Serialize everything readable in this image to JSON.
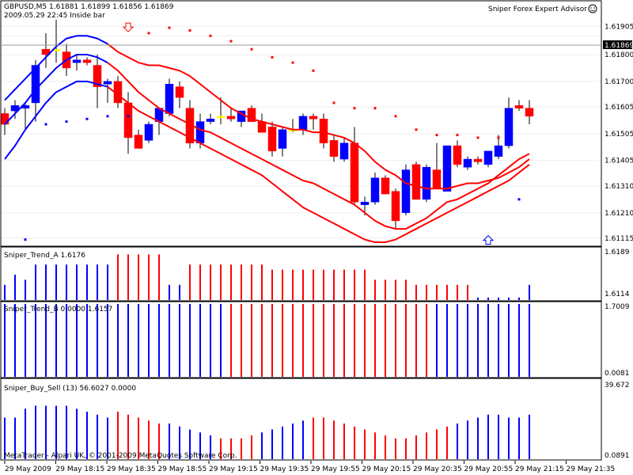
{
  "window": {
    "symbol_line": "GBPUSD,M5  1.61881 1.61899 1.61856 1.61869",
    "info_line": "2009.05.29 22:45 Inside bar",
    "advisor": "Sniper Forex Expert Advisor",
    "copyright": "MetaTrader - Alpari UK, © 2001-2009 MetaQuotes Software Corp."
  },
  "colors": {
    "bull": "#0000ff",
    "bear": "#ff0000",
    "doji": "#ffff00",
    "grid": "#d0d0d0"
  },
  "chart_data": [
    {
      "type": "candlestick",
      "title": "GBPUSD,M5",
      "price_ticks": [
        "1.61905",
        "1.61869",
        "1.61800",
        "1.61700",
        "1.61605",
        "1.61505",
        "1.61405",
        "1.61310",
        "1.61210",
        "1.61115"
      ],
      "current_price": 1.61869,
      "ylim": [
        1.611,
        1.6198
      ],
      "candles": [
        [
          1.6158,
          1.616,
          1.615,
          1.6154
        ],
        [
          1.6159,
          1.6163,
          1.6156,
          1.6161
        ],
        [
          1.616,
          1.6162,
          1.6152,
          1.6161
        ],
        [
          1.6162,
          1.6178,
          1.6155,
          1.6176
        ],
        [
          1.6182,
          1.6188,
          1.6175,
          1.618
        ],
        [
          1.6182,
          1.6193,
          1.6177,
          1.6182
        ],
        [
          1.6181,
          1.6184,
          1.6172,
          1.6175
        ],
        [
          1.6177,
          1.618,
          1.6174,
          1.6178
        ],
        [
          1.6178,
          1.6179,
          1.6176,
          1.6177
        ],
        [
          1.6176,
          1.618,
          1.616,
          1.6168
        ],
        [
          1.6169,
          1.6171,
          1.6162,
          1.617
        ],
        [
          1.617,
          1.6172,
          1.616,
          1.6162
        ],
        [
          1.6162,
          1.6166,
          1.6143,
          1.6149
        ],
        [
          1.615,
          1.6152,
          1.6145,
          1.6145
        ],
        [
          1.6148,
          1.6155,
          1.6147,
          1.6154
        ],
        [
          1.6155,
          1.616,
          1.615,
          1.616
        ],
        [
          1.6158,
          1.6171,
          1.6157,
          1.6169
        ],
        [
          1.6168,
          1.617,
          1.616,
          1.6164
        ],
        [
          1.616,
          1.6163,
          1.6145,
          1.6147
        ],
        [
          1.6147,
          1.6158,
          1.6145,
          1.6155
        ],
        [
          1.6155,
          1.6158,
          1.6154,
          1.6156
        ],
        [
          1.6157,
          1.6164,
          1.6154,
          1.6157
        ],
        [
          1.6157,
          1.616,
          1.6155,
          1.6156
        ],
        [
          1.6155,
          1.6159,
          1.6153,
          1.6159
        ],
        [
          1.616,
          1.6161,
          1.6155,
          1.6155
        ],
        [
          1.6155,
          1.6158,
          1.6151,
          1.6151
        ],
        [
          1.6153,
          1.6155,
          1.6142,
          1.6144
        ],
        [
          1.6145,
          1.6153,
          1.6142,
          1.6152
        ],
        [
          1.6152,
          1.6156,
          1.6151,
          1.6152
        ],
        [
          1.6152,
          1.6158,
          1.615,
          1.6157
        ],
        [
          1.6157,
          1.6158,
          1.6152,
          1.6156
        ],
        [
          1.6156,
          1.6158,
          1.6145,
          1.6147
        ],
        [
          1.6148,
          1.615,
          1.614,
          1.6142
        ],
        [
          1.6141,
          1.6149,
          1.614,
          1.6147
        ],
        [
          1.6147,
          1.6153,
          1.6124,
          1.6125
        ],
        [
          1.6124,
          1.6127,
          1.612,
          1.6125
        ],
        [
          1.6125,
          1.6136,
          1.6124,
          1.6134
        ],
        [
          1.6134,
          1.6135,
          1.6128,
          1.6128
        ],
        [
          1.6129,
          1.613,
          1.6115,
          1.6118
        ],
        [
          1.6121,
          1.6139,
          1.612,
          1.6137
        ],
        [
          1.6139,
          1.614,
          1.6126,
          1.6126
        ],
        [
          1.6126,
          1.6139,
          1.6125,
          1.6138
        ],
        [
          1.6137,
          1.6147,
          1.613,
          1.613
        ],
        [
          1.6129,
          1.6146,
          1.6129,
          1.6146
        ],
        [
          1.6146,
          1.6148,
          1.6138,
          1.6139
        ],
        [
          1.6138,
          1.6142,
          1.6137,
          1.6141
        ],
        [
          1.6141,
          1.6142,
          1.6139,
          1.614
        ],
        [
          1.6139,
          1.6144,
          1.6138,
          1.6144
        ],
        [
          1.6142,
          1.615,
          1.6141,
          1.6146
        ],
        [
          1.6146,
          1.6164,
          1.6145,
          1.616
        ],
        [
          1.6161,
          1.6163,
          1.6159,
          1.616
        ],
        [
          1.616,
          1.6163,
          1.6154,
          1.6157
        ]
      ],
      "upper_band": [
        1.6163,
        1.6167,
        1.6171,
        1.6175,
        1.6179,
        1.6183,
        1.6186,
        1.6187,
        1.6187,
        1.6186,
        1.6184,
        1.6181,
        1.6179,
        1.6177,
        1.6176,
        1.6176,
        1.6175,
        1.6174,
        1.6172,
        1.6169,
        1.6166,
        1.6163,
        1.616,
        1.6158,
        1.6156,
        1.6155,
        1.6154,
        1.6153,
        1.6152,
        1.6152,
        1.6151,
        1.6151,
        1.615,
        1.6149,
        1.6147,
        1.6144,
        1.614,
        1.6137,
        1.6135,
        1.6132,
        1.6131,
        1.613,
        1.613,
        1.613,
        1.6131,
        1.6132,
        1.6132,
        1.6133,
        1.6134,
        1.6136,
        1.6138,
        1.6141
      ],
      "middle_band": [
        1.6154,
        1.6158,
        1.6162,
        1.6167,
        1.6171,
        1.6175,
        1.6178,
        1.618,
        1.618,
        1.6179,
        1.6177,
        1.6174,
        1.617,
        1.6166,
        1.6163,
        1.616,
        1.6158,
        1.6156,
        1.6154,
        1.6152,
        1.6151,
        1.6149,
        1.6147,
        1.6145,
        1.6143,
        1.6141,
        1.6139,
        1.6137,
        1.6135,
        1.6133,
        1.6132,
        1.613,
        1.6128,
        1.6126,
        1.6124,
        1.6121,
        1.6118,
        1.6116,
        1.6115,
        1.6115,
        1.6117,
        1.6119,
        1.6122,
        1.6125,
        1.6126,
        1.6128,
        1.613,
        1.6132,
        1.6135,
        1.6138,
        1.6141,
        1.6143
      ],
      "lower_band": [
        1.6141,
        1.6146,
        1.6152,
        1.6157,
        1.6162,
        1.6166,
        1.6168,
        1.617,
        1.617,
        1.6169,
        1.6168,
        1.6165,
        1.6162,
        1.6159,
        1.6157,
        1.6155,
        1.6153,
        1.6151,
        1.6149,
        1.6147,
        1.6145,
        1.6143,
        1.6141,
        1.6139,
        1.6137,
        1.6135,
        1.6132,
        1.6129,
        1.6126,
        1.6123,
        1.6121,
        1.6119,
        1.6117,
        1.6115,
        1.6113,
        1.6111,
        1.611,
        1.611,
        1.6111,
        1.6113,
        1.6115,
        1.6117,
        1.6119,
        1.6121,
        1.6123,
        1.6125,
        1.6127,
        1.6129,
        1.6131,
        1.6133,
        1.6136,
        1.6139
      ],
      "dot_indices": [
        2,
        4,
        6,
        8,
        10,
        12,
        14,
        16,
        18,
        20,
        22,
        24,
        26,
        28,
        30,
        32,
        34,
        36,
        38,
        40,
        42,
        44,
        46,
        48,
        50
      ],
      "dots": [
        1.6111,
        1.6154,
        1.6155,
        1.6156,
        1.6157,
        1.6157,
        1.6188,
        1.619,
        1.6189,
        1.6187,
        1.6185,
        1.6182,
        1.6179,
        1.6177,
        1.6174,
        1.6162,
        1.616,
        1.616,
        1.6157,
        1.6152,
        1.615,
        1.615,
        1.6149,
        1.6149,
        1.6126
      ],
      "annotations": [
        {
          "kind": "down-arrow",
          "candle": 12,
          "price": 1.619
        },
        {
          "kind": "up-arrow",
          "candle": 47,
          "price": 1.6111
        }
      ]
    },
    {
      "type": "bar",
      "title": "Sniper_Trend_A 1.6176",
      "scale_labels": [
        "1.6189",
        "1.6114"
      ],
      "values": [
        0.3,
        0.5,
        0.4,
        0.7,
        0.7,
        0.7,
        0.7,
        0.7,
        0.7,
        0.7,
        0.7,
        0.9,
        0.9,
        0.9,
        0.9,
        0.9,
        0.3,
        0.3,
        0.7,
        0.7,
        0.7,
        0.7,
        0.7,
        0.7,
        0.7,
        0.7,
        0.6,
        0.6,
        0.6,
        0.6,
        0.6,
        0.6,
        0.6,
        0.6,
        0.6,
        0.6,
        0.4,
        0.4,
        0.4,
        0.4,
        0.3,
        0.3,
        0.3,
        0.3,
        0.3,
        0.3,
        0.05,
        0.05,
        0.05,
        0.05,
        0.05,
        0.3
      ],
      "colors": [
        "b",
        "b",
        "b",
        "b",
        "b",
        "b",
        "b",
        "b",
        "b",
        "b",
        "b",
        "r",
        "r",
        "r",
        "r",
        "r",
        "b",
        "b",
        "r",
        "r",
        "r",
        "r",
        "r",
        "r",
        "r",
        "r",
        "r",
        "r",
        "r",
        "r",
        "r",
        "r",
        "r",
        "r",
        "r",
        "r",
        "r",
        "r",
        "r",
        "r",
        "r",
        "r",
        "r",
        "r",
        "r",
        "r",
        "b",
        "b",
        "b",
        "b",
        "b",
        "b"
      ]
    },
    {
      "type": "bar",
      "title": "Sniper_Trend_B 0.0000 1.6157",
      "scale_labels": [
        "1.7009",
        "0.0081"
      ],
      "values": [
        1,
        1,
        1,
        1,
        1,
        1,
        1,
        1,
        1,
        1,
        1,
        1,
        1,
        1,
        1,
        1,
        1,
        1,
        1,
        1,
        1,
        1,
        1,
        1,
        1,
        1,
        1,
        1,
        1,
        1,
        1,
        1,
        1,
        1,
        1,
        1,
        1,
        1,
        1,
        1,
        1,
        1,
        1,
        1,
        1,
        1,
        1,
        1,
        1,
        1,
        1,
        1
      ],
      "colors": [
        "b",
        "b",
        "b",
        "b",
        "b",
        "b",
        "b",
        "b",
        "b",
        "b",
        "b",
        "b",
        "b",
        "b",
        "b",
        "b",
        "b",
        "b",
        "b",
        "b",
        "b",
        "b",
        "r",
        "r",
        "r",
        "r",
        "r",
        "r",
        "r",
        "r",
        "r",
        "r",
        "r",
        "r",
        "r",
        "r",
        "r",
        "r",
        "r",
        "r",
        "r",
        "r",
        "b",
        "b",
        "b",
        "b",
        "b",
        "b",
        "b",
        "b",
        "b",
        "b"
      ]
    },
    {
      "type": "bar",
      "title": "Sniper_Buy_Sell (13) 56.6027 0.0000",
      "scale_labels": [
        "39.672",
        "0.0891"
      ],
      "values": [
        0.7,
        0.7,
        0.85,
        0.9,
        0.9,
        0.9,
        0.9,
        0.85,
        0.8,
        0.75,
        0.7,
        0.8,
        0.75,
        0.7,
        0.65,
        0.6,
        0.6,
        0.55,
        0.5,
        0.45,
        0.4,
        0.35,
        0.35,
        0.35,
        0.4,
        0.45,
        0.5,
        0.55,
        0.6,
        0.65,
        0.7,
        0.7,
        0.65,
        0.6,
        0.55,
        0.5,
        0.45,
        0.4,
        0.35,
        0.35,
        0.4,
        0.45,
        0.5,
        0.55,
        0.6,
        0.65,
        0.7,
        0.75,
        0.75,
        0.7,
        0.7,
        0.75
      ],
      "colors": [
        "b",
        "b",
        "b",
        "b",
        "b",
        "b",
        "b",
        "b",
        "b",
        "b",
        "b",
        "r",
        "r",
        "r",
        "r",
        "r",
        "b",
        "b",
        "b",
        "b",
        "b",
        "r",
        "r",
        "r",
        "r",
        "b",
        "b",
        "b",
        "b",
        "b",
        "r",
        "r",
        "r",
        "r",
        "r",
        "r",
        "r",
        "r",
        "r",
        "r",
        "r",
        "r",
        "r",
        "r",
        "b",
        "b",
        "b",
        "b",
        "b",
        "b",
        "b",
        "b"
      ]
    }
  ],
  "time_axis": [
    "29 May 2009",
    "29 May 18:15",
    "29 May 18:35",
    "29 May 18:55",
    "29 May 19:15",
    "29 May 19:35",
    "29 May 19:55",
    "29 May 20:15",
    "29 May 20:35",
    "29 May 20:55",
    "29 May 21:15",
    "29 May 21:35"
  ]
}
